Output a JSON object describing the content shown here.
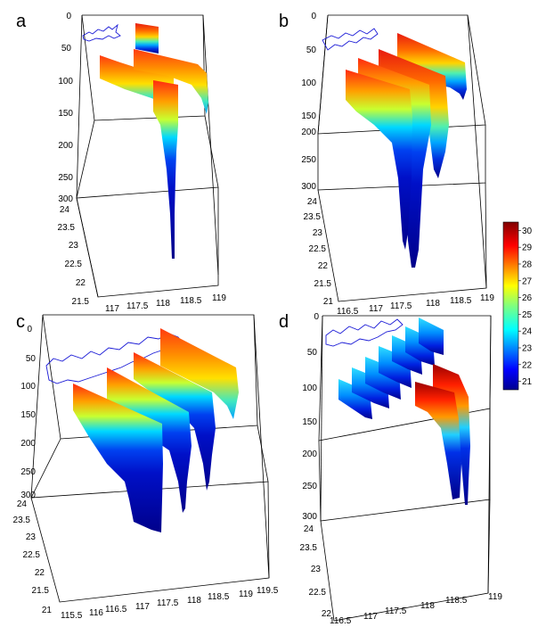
{
  "chart_data": [
    {
      "type": "3d-section",
      "panel": "a",
      "zlabel": "",
      "z_ticks": [
        "0",
        "50",
        "100",
        "150",
        "200",
        "250",
        "300"
      ],
      "lat_ticks": [
        "24",
        "23.5",
        "23",
        "22.5",
        "22",
        "21.5"
      ],
      "lon_ticks": [
        "117",
        "117.5",
        "118",
        "118.5",
        "119"
      ],
      "zlim": [
        0,
        300
      ],
      "latlim": [
        21.5,
        24
      ],
      "lonlim": [
        117,
        119
      ]
    },
    {
      "type": "3d-section",
      "panel": "b",
      "z_ticks": [
        "0",
        "50",
        "100",
        "150",
        "200",
        "250",
        "300"
      ],
      "lat_ticks": [
        "24",
        "23.5",
        "23",
        "22.5",
        "22",
        "21.5",
        "21"
      ],
      "lon_ticks": [
        "116.5",
        "117",
        "117.5",
        "118",
        "118.5",
        "119"
      ],
      "zlim": [
        0,
        300
      ],
      "latlim": [
        21,
        24
      ],
      "lonlim": [
        116.5,
        119
      ]
    },
    {
      "type": "3d-section",
      "panel": "c",
      "z_ticks": [
        "0",
        "50",
        "100",
        "150",
        "200",
        "250",
        "300"
      ],
      "lat_ticks": [
        "24",
        "23.5",
        "23",
        "22.5",
        "22",
        "21.5",
        "21"
      ],
      "lon_ticks": [
        "115.5",
        "116",
        "116.5",
        "117",
        "117.5",
        "118",
        "118.5",
        "119",
        "119.5"
      ],
      "zlim": [
        0,
        300
      ],
      "latlim": [
        21,
        24
      ],
      "lonlim": [
        115.5,
        119.5
      ]
    },
    {
      "type": "3d-section",
      "panel": "d",
      "z_ticks": [
        "0",
        "50",
        "100",
        "150",
        "200",
        "250",
        "300"
      ],
      "lat_ticks": [
        "24",
        "23.5",
        "23",
        "22.5",
        "22"
      ],
      "lon_ticks": [
        "116.5",
        "117",
        "117.5",
        "118",
        "118.5",
        "119"
      ],
      "zlim": [
        0,
        300
      ],
      "latlim": [
        22,
        24
      ],
      "lonlim": [
        116.5,
        119
      ]
    }
  ],
  "colorbar": {
    "ticks": [
      "30",
      "29",
      "28",
      "27",
      "26",
      "25",
      "24",
      "23",
      "22",
      "21"
    ],
    "range": [
      20.5,
      30.5
    ],
    "colormap": "jet"
  }
}
